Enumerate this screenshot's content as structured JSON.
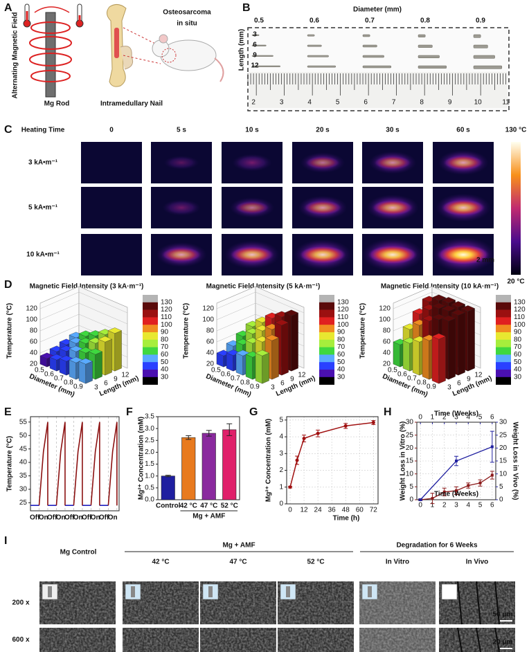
{
  "panel_labels": [
    "A",
    "B",
    "C",
    "D",
    "E",
    "F",
    "G",
    "H",
    "I"
  ],
  "A": {
    "field": "Alternating Magnetic Field",
    "rod": "Mg Rod",
    "nail": "Intramedullary Nail",
    "tumor": [
      "Osteosarcoma",
      "in situ"
    ]
  },
  "B": {
    "xlabel": "Diameter (mm)",
    "diameters": [
      0.5,
      0.6,
      0.7,
      0.8,
      0.9
    ],
    "ylabel": "Length (mm)",
    "lengths": [
      3,
      6,
      9,
      12
    ],
    "ruler": [
      2,
      3,
      4,
      5,
      6,
      7,
      8,
      9,
      10,
      11
    ]
  },
  "C": {
    "heading": "Heating Time",
    "times": [
      "0",
      "5 s",
      "10 s",
      "20 s",
      "30 s",
      "60 s"
    ],
    "fields": [
      "3 kA•m⁻¹",
      "5 kA•m⁻¹",
      "10 kA•m⁻¹"
    ],
    "max": "130 °C",
    "min": "20 °C",
    "scale": "2 mm"
  },
  "D_colorbar": {
    "ticks": [
      130,
      120,
      110,
      100,
      90,
      80,
      70,
      60,
      50,
      40,
      30
    ],
    "colors": [
      "#b4b4b4",
      "#5a0a0a",
      "#9b1010",
      "#e02020",
      "#f08c20",
      "#e8e830",
      "#a6ee3c",
      "#3fd83f",
      "#5aaaff",
      "#2a40ff",
      "#4a10b0",
      "#000000"
    ]
  },
  "chart_data": [
    {
      "type": "bar3d",
      "title": "Magnetic Field Intensity (3 kA·m⁻¹)",
      "zlabel": "Temperature (°C)",
      "xlabel": "Diameter (mm)",
      "ylabel": "Length (mm)",
      "x_categories": [
        0.5,
        0.6,
        0.7,
        0.8,
        0.9
      ],
      "y_categories": [
        3,
        6,
        9,
        12
      ],
      "values": [
        [
          35,
          40,
          45,
          50
        ],
        [
          40,
          48,
          55,
          60
        ],
        [
          45,
          55,
          62,
          68
        ],
        [
          50,
          60,
          70,
          78
        ],
        [
          55,
          65,
          80,
          88
        ]
      ],
      "zlim": [
        20,
        130
      ],
      "zticks": [
        20,
        40,
        60,
        80,
        100,
        120
      ]
    },
    {
      "type": "bar3d",
      "title": "Magnetic Field Intensity (5 kA·m⁻¹)",
      "zlabel": "Temperature (°C)",
      "xlabel": "Diameter (mm)",
      "ylabel": "Length (mm)",
      "x_categories": [
        0.5,
        0.6,
        0.7,
        0.8,
        0.9
      ],
      "y_categories": [
        3,
        6,
        9,
        12
      ],
      "values": [
        [
          40,
          50,
          60,
          70
        ],
        [
          48,
          60,
          72,
          85
        ],
        [
          55,
          70,
          85,
          100
        ],
        [
          60,
          80,
          95,
          110
        ],
        [
          70,
          90,
          110,
          120
        ]
      ],
      "zlim": [
        20,
        130
      ],
      "zticks": [
        20,
        40,
        60,
        80,
        100,
        120
      ]
    },
    {
      "type": "bar3d",
      "title": "Magnetic Field Intensity (10 kA·m⁻¹)",
      "zlabel": "Temperature (°C)",
      "xlabel": "Diameter (mm)",
      "ylabel": "Length (mm)",
      "x_categories": [
        0.5,
        0.6,
        0.7,
        0.8,
        0.9
      ],
      "y_categories": [
        3,
        6,
        9,
        12
      ],
      "values": [
        [
          60,
          80,
          100,
          115
        ],
        [
          70,
          95,
          115,
          125
        ],
        [
          80,
          110,
          125,
          128
        ],
        [
          90,
          120,
          128,
          128
        ],
        [
          100,
          125,
          128,
          128
        ]
      ],
      "zlim": [
        20,
        130
      ],
      "zticks": [
        20,
        40,
        60,
        80,
        100,
        120
      ]
    },
    {
      "type": "line",
      "ylabel": "Temperature (°C)",
      "x": [
        0,
        2,
        3,
        4,
        4,
        4,
        6,
        7,
        8,
        8,
        8,
        10,
        11,
        12,
        12,
        12,
        14,
        15,
        16,
        16,
        16,
        18,
        19,
        20,
        20
      ],
      "series": [
        {
          "color": "#1f1fbf",
          "values": [
            24,
            24,
            null,
            null,
            null,
            24,
            24,
            null,
            null,
            null,
            24,
            24,
            null,
            null,
            null,
            24,
            24,
            null,
            null,
            null,
            24,
            24,
            null,
            null,
            null
          ]
        },
        {
          "color": "#8b1010",
          "values": [
            null,
            24,
            44,
            55,
            24,
            null,
            24,
            44,
            55,
            24,
            null,
            24,
            44,
            55,
            24,
            null,
            24,
            44,
            55,
            24,
            null,
            24,
            44,
            55,
            24
          ]
        }
      ],
      "phase_labels": [
        "Off",
        "On",
        "Off",
        "On",
        "Off",
        "On",
        "Off",
        "On",
        "Off",
        "On"
      ],
      "phase_colors": [
        "#1f1fbf",
        "#8b1010"
      ],
      "xlim": [
        0,
        20.5
      ],
      "ylim": [
        22,
        57
      ],
      "yticks": [
        25,
        30,
        35,
        40,
        45,
        50,
        55
      ]
    },
    {
      "type": "bar",
      "ylabel": "Mg²⁺ Concentration (mM)",
      "group_label": "Mg + AMF",
      "categories": [
        "Control",
        "42 °C",
        "47 °C",
        "52 °C"
      ],
      "values": [
        1.0,
        2.62,
        2.8,
        2.95
      ],
      "errors": [
        0.03,
        0.08,
        0.12,
        0.25
      ],
      "colors": [
        "#1f1fa0",
        "#e87a1e",
        "#8a2a9e",
        "#e0206a"
      ],
      "ylim": [
        0,
        3.5
      ],
      "yticks": [
        {
          "value": 0,
          "label": "0.0"
        },
        {
          "value": 0.5,
          "label": "0.5"
        },
        {
          "value": 1,
          "label": "1.0"
        },
        {
          "value": 1.5,
          "label": "1.5"
        },
        {
          "value": 2,
          "label": "2.0"
        },
        {
          "value": 2.5,
          "label": "2.5"
        },
        {
          "value": 3,
          "label": "3.0"
        },
        {
          "value": 3.5,
          "label": "3.5"
        }
      ]
    },
    {
      "type": "line",
      "ylabel": "Mg²⁺ Concentration (mM)",
      "xlabel": "Time (h)",
      "color": "#a01010",
      "grid": true,
      "x": [
        0,
        6,
        12,
        24,
        48,
        72
      ],
      "values": [
        1.0,
        2.6,
        3.9,
        4.2,
        4.65,
        4.85
      ],
      "errors": [
        0.05,
        0.25,
        0.2,
        0.2,
        0.15,
        0.12
      ],
      "xlim": [
        -3,
        76
      ],
      "xticks": [
        0,
        12,
        24,
        36,
        48,
        60,
        72
      ],
      "ylim": [
        0,
        5.2
      ],
      "yticks": [
        0,
        1,
        2,
        3,
        4,
        5
      ]
    },
    {
      "type": "line",
      "ylabel": "Weight Loss in Vitro (%)",
      "y2label": "Weight Loss in Vivo (%)",
      "xlabel": "Time (Weeks)",
      "x2label": "Time (Weeks)",
      "grid": true,
      "series": [
        {
          "color": "#8b1a1a",
          "x": [
            0,
            1,
            2,
            3,
            4,
            5,
            6
          ],
          "values": [
            0,
            0.5,
            3,
            3.5,
            5.5,
            6.5,
            9.5
          ],
          "errors": [
            0.3,
            2,
            1.5,
            1.5,
            1,
            1.2,
            1.5
          ]
        },
        {
          "color": "#2020a0",
          "axis": "y2",
          "xaxis": "x2",
          "x": [
            0,
            3,
            6
          ],
          "values": [
            0,
            15,
            20.5
          ],
          "errors": [
            0.3,
            1.8,
            6
          ]
        }
      ],
      "xlim": [
        -0.3,
        6.3
      ],
      "xticks": [
        0,
        1,
        2,
        3,
        4,
        5,
        6
      ],
      "x2lim": [
        -0.3,
        6.3
      ],
      "x2ticks": [
        0,
        1,
        2,
        3,
        4,
        5,
        6
      ],
      "ylim": [
        0,
        30
      ],
      "yticks": [
        0,
        5,
        10,
        15,
        20,
        25,
        30
      ],
      "y2lim": [
        0,
        30
      ],
      "y2ticks": [
        0,
        5,
        10,
        15,
        20,
        25,
        30
      ]
    }
  ],
  "I": {
    "control": "Mg Control",
    "amf": "Mg + AMF",
    "temps": [
      "42 °C",
      "47 °C",
      "52 °C"
    ],
    "degradation": "Degradation for 6 Weeks",
    "vitro": "In Vitro",
    "vivo": "In Vivo",
    "rows": [
      "200 x",
      "600 x"
    ],
    "scales": [
      "50 μm",
      "20 μm"
    ]
  }
}
